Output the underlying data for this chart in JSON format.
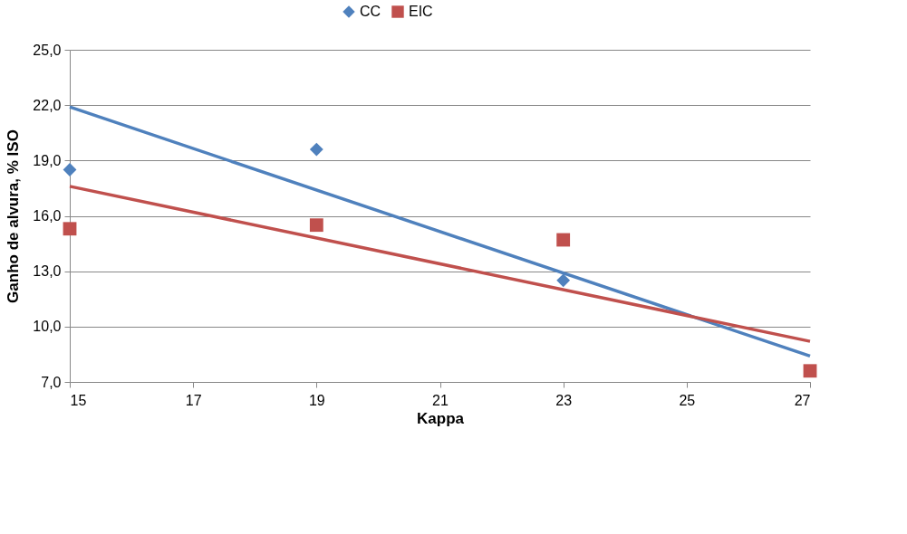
{
  "chart_data": {
    "type": "scatter",
    "xlabel": "Kappa",
    "ylabel": "Ganho de alvura, % ISO",
    "xlim": [
      15,
      27
    ],
    "xticks": [
      15,
      17,
      19,
      21,
      23,
      25,
      27
    ],
    "ylim": [
      7,
      25
    ],
    "yticks": [
      {
        "value": 7,
        "label": "7,0"
      },
      {
        "value": 10,
        "label": "10,0"
      },
      {
        "value": 13,
        "label": "13,0"
      },
      {
        "value": 16,
        "label": "16,0"
      },
      {
        "value": 19,
        "label": "19,0"
      },
      {
        "value": 22,
        "label": "22,0"
      },
      {
        "value": 25,
        "label": "25,0"
      }
    ],
    "grid": "y",
    "legend": "top",
    "series": [
      {
        "name": "CC",
        "color": "#4f81bd",
        "marker": "diamond",
        "x": [
          15,
          19,
          23
        ],
        "values": [
          18.5,
          19.6,
          12.5
        ]
      },
      {
        "name": "EIC",
        "color": "#c0504d",
        "marker": "square",
        "x": [
          15,
          19,
          23,
          27
        ],
        "values": [
          15.3,
          15.5,
          14.7,
          7.6
        ]
      },
      {
        "type": "line",
        "color": "#4f81bd",
        "x": [
          15,
          27
        ],
        "values": [
          21.9,
          8.4
        ]
      },
      {
        "type": "line",
        "color": "#c0504d",
        "x": [
          15,
          27
        ],
        "values": [
          17.6,
          9.2
        ]
      }
    ]
  }
}
